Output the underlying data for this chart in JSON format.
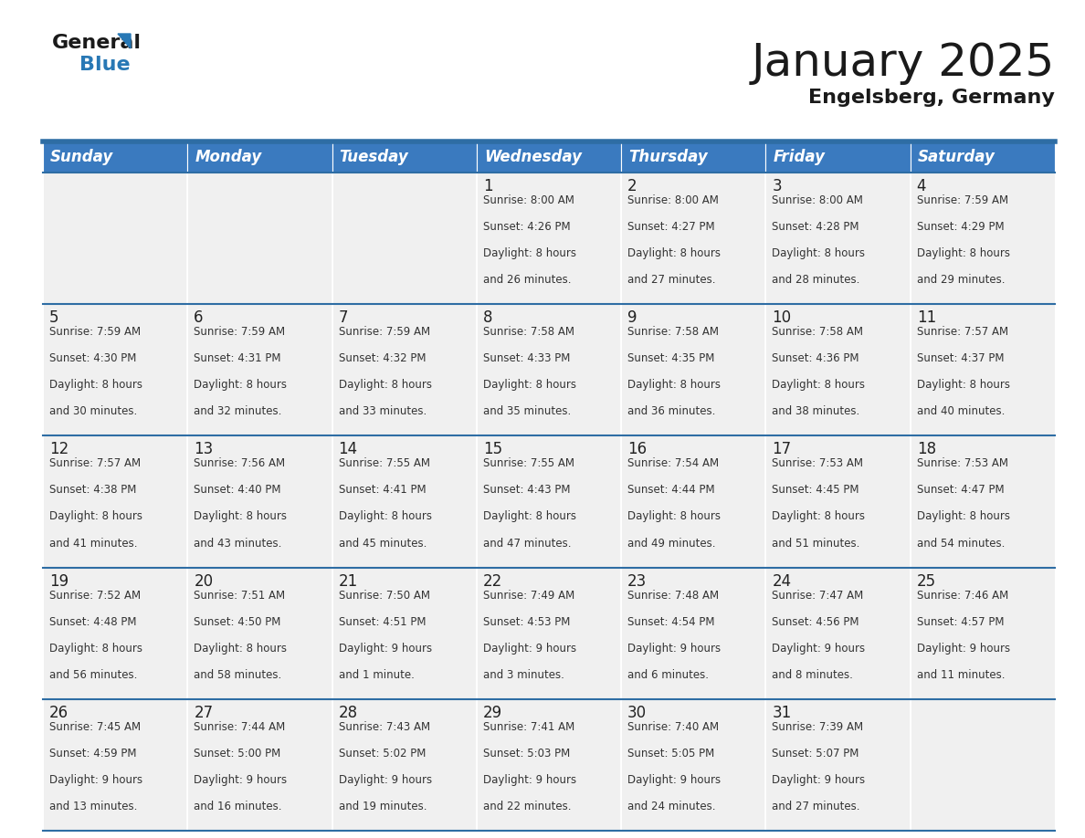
{
  "title": "January 2025",
  "subtitle": "Engelsberg, Germany",
  "header_bg_color": "#3a7abf",
  "header_text_color": "#ffffff",
  "cell_bg_color": "#f0f0f0",
  "day_number_color": "#222222",
  "cell_text_color": "#333333",
  "grid_line_color": "#2e6da4",
  "days_of_week": [
    "Sunday",
    "Monday",
    "Tuesday",
    "Wednesday",
    "Thursday",
    "Friday",
    "Saturday"
  ],
  "calendar": [
    [
      {
        "day": null,
        "sunrise": null,
        "sunset": null,
        "daylight": null
      },
      {
        "day": null,
        "sunrise": null,
        "sunset": null,
        "daylight": null
      },
      {
        "day": null,
        "sunrise": null,
        "sunset": null,
        "daylight": null
      },
      {
        "day": 1,
        "sunrise": "8:00 AM",
        "sunset": "4:26 PM",
        "daylight": "8 hours\nand 26 minutes."
      },
      {
        "day": 2,
        "sunrise": "8:00 AM",
        "sunset": "4:27 PM",
        "daylight": "8 hours\nand 27 minutes."
      },
      {
        "day": 3,
        "sunrise": "8:00 AM",
        "sunset": "4:28 PM",
        "daylight": "8 hours\nand 28 minutes."
      },
      {
        "day": 4,
        "sunrise": "7:59 AM",
        "sunset": "4:29 PM",
        "daylight": "8 hours\nand 29 minutes."
      }
    ],
    [
      {
        "day": 5,
        "sunrise": "7:59 AM",
        "sunset": "4:30 PM",
        "daylight": "8 hours\nand 30 minutes."
      },
      {
        "day": 6,
        "sunrise": "7:59 AM",
        "sunset": "4:31 PM",
        "daylight": "8 hours\nand 32 minutes."
      },
      {
        "day": 7,
        "sunrise": "7:59 AM",
        "sunset": "4:32 PM",
        "daylight": "8 hours\nand 33 minutes."
      },
      {
        "day": 8,
        "sunrise": "7:58 AM",
        "sunset": "4:33 PM",
        "daylight": "8 hours\nand 35 minutes."
      },
      {
        "day": 9,
        "sunrise": "7:58 AM",
        "sunset": "4:35 PM",
        "daylight": "8 hours\nand 36 minutes."
      },
      {
        "day": 10,
        "sunrise": "7:58 AM",
        "sunset": "4:36 PM",
        "daylight": "8 hours\nand 38 minutes."
      },
      {
        "day": 11,
        "sunrise": "7:57 AM",
        "sunset": "4:37 PM",
        "daylight": "8 hours\nand 40 minutes."
      }
    ],
    [
      {
        "day": 12,
        "sunrise": "7:57 AM",
        "sunset": "4:38 PM",
        "daylight": "8 hours\nand 41 minutes."
      },
      {
        "day": 13,
        "sunrise": "7:56 AM",
        "sunset": "4:40 PM",
        "daylight": "8 hours\nand 43 minutes."
      },
      {
        "day": 14,
        "sunrise": "7:55 AM",
        "sunset": "4:41 PM",
        "daylight": "8 hours\nand 45 minutes."
      },
      {
        "day": 15,
        "sunrise": "7:55 AM",
        "sunset": "4:43 PM",
        "daylight": "8 hours\nand 47 minutes."
      },
      {
        "day": 16,
        "sunrise": "7:54 AM",
        "sunset": "4:44 PM",
        "daylight": "8 hours\nand 49 minutes."
      },
      {
        "day": 17,
        "sunrise": "7:53 AM",
        "sunset": "4:45 PM",
        "daylight": "8 hours\nand 51 minutes."
      },
      {
        "day": 18,
        "sunrise": "7:53 AM",
        "sunset": "4:47 PM",
        "daylight": "8 hours\nand 54 minutes."
      }
    ],
    [
      {
        "day": 19,
        "sunrise": "7:52 AM",
        "sunset": "4:48 PM",
        "daylight": "8 hours\nand 56 minutes."
      },
      {
        "day": 20,
        "sunrise": "7:51 AM",
        "sunset": "4:50 PM",
        "daylight": "8 hours\nand 58 minutes."
      },
      {
        "day": 21,
        "sunrise": "7:50 AM",
        "sunset": "4:51 PM",
        "daylight": "9 hours\nand 1 minute."
      },
      {
        "day": 22,
        "sunrise": "7:49 AM",
        "sunset": "4:53 PM",
        "daylight": "9 hours\nand 3 minutes."
      },
      {
        "day": 23,
        "sunrise": "7:48 AM",
        "sunset": "4:54 PM",
        "daylight": "9 hours\nand 6 minutes."
      },
      {
        "day": 24,
        "sunrise": "7:47 AM",
        "sunset": "4:56 PM",
        "daylight": "9 hours\nand 8 minutes."
      },
      {
        "day": 25,
        "sunrise": "7:46 AM",
        "sunset": "4:57 PM",
        "daylight": "9 hours\nand 11 minutes."
      }
    ],
    [
      {
        "day": 26,
        "sunrise": "7:45 AM",
        "sunset": "4:59 PM",
        "daylight": "9 hours\nand 13 minutes."
      },
      {
        "day": 27,
        "sunrise": "7:44 AM",
        "sunset": "5:00 PM",
        "daylight": "9 hours\nand 16 minutes."
      },
      {
        "day": 28,
        "sunrise": "7:43 AM",
        "sunset": "5:02 PM",
        "daylight": "9 hours\nand 19 minutes."
      },
      {
        "day": 29,
        "sunrise": "7:41 AM",
        "sunset": "5:03 PM",
        "daylight": "9 hours\nand 22 minutes."
      },
      {
        "day": 30,
        "sunrise": "7:40 AM",
        "sunset": "5:05 PM",
        "daylight": "9 hours\nand 24 minutes."
      },
      {
        "day": 31,
        "sunrise": "7:39 AM",
        "sunset": "5:07 PM",
        "daylight": "9 hours\nand 27 minutes."
      },
      {
        "day": null,
        "sunrise": null,
        "sunset": null,
        "daylight": null
      }
    ]
  ],
  "logo_general_color": "#1a1a1a",
  "logo_blue_color": "#2878b5",
  "logo_triangle_color": "#2878b5",
  "title_fontsize": 36,
  "subtitle_fontsize": 16,
  "header_fontsize": 12,
  "day_num_fontsize": 12,
  "cell_text_fontsize": 8.5
}
